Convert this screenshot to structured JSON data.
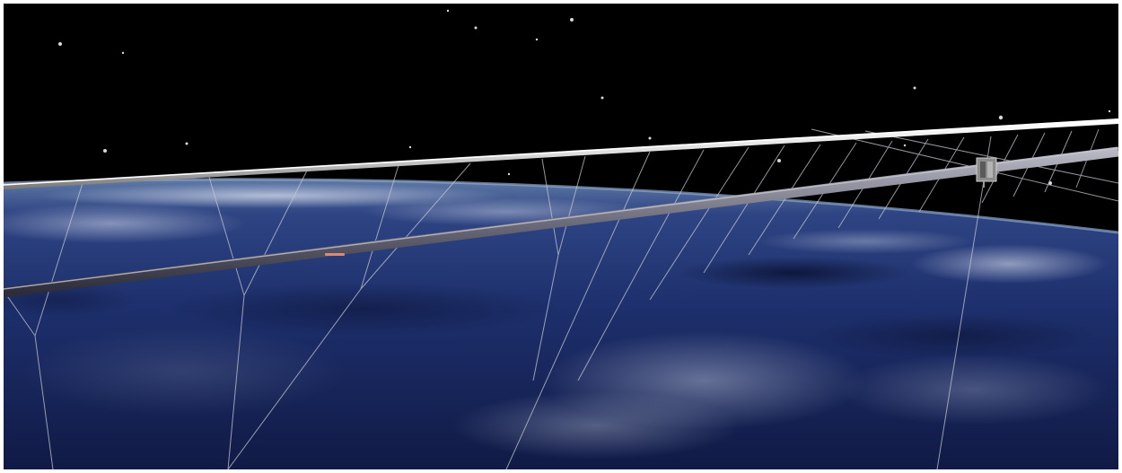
{
  "scene": {
    "subject": "space-render",
    "colors": {
      "space": "#000000",
      "frame": "#ffffff",
      "ocean_dark": "#0c1a44",
      "ocean_mid": "#1f3473",
      "cloud": "#b8c4dc",
      "limb_glow": "#5d7fa6",
      "rail": "#e6e6e6",
      "tube": "#8a8a96",
      "tether": "#c8ccd6",
      "marker": "#d98a7c"
    },
    "icons": {
      "satellite": "satellite-icon",
      "marker": "marker-icon"
    }
  }
}
